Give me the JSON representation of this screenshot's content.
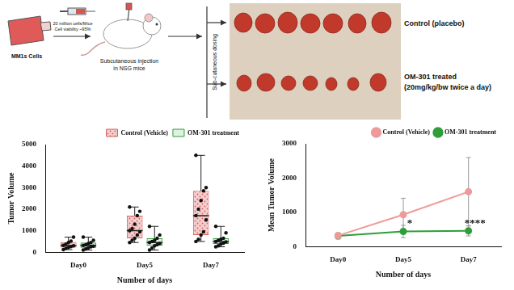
{
  "diagram": {
    "cells_label": "MM1s Cells",
    "dose_lines": [
      "20 million cells/Mice",
      "Cell viability ~95%"
    ],
    "injection_lines": [
      "Subcutaneous injection",
      "in NSG mice"
    ],
    "dosing_label": "Sub-cutaneous dosing",
    "groups": [
      {
        "lines": [
          "Control (placebo)"
        ]
      },
      {
        "lines": [
          "OM-301 treated",
          "(20mg/kg/bw twice a day)"
        ]
      }
    ]
  },
  "chart_data": [
    {
      "type": "box",
      "y_label": "Tumor Volume",
      "x_label": "Number of days",
      "categories": [
        "Day0",
        "Day5",
        "Day7"
      ],
      "ylim": [
        0,
        5000
      ],
      "yticks": [
        0,
        1000,
        2000,
        3000,
        4000,
        5000
      ],
      "grid": false,
      "legend": "top right",
      "series": [
        {
          "name": "Control (Vehicle)",
          "color": "#d9605f",
          "boxes": [
            {
              "min": 120,
              "q1": 210,
              "median": 310,
              "q3": 470,
              "max": 700
            },
            {
              "min": 450,
              "q1": 650,
              "median": 1000,
              "q3": 1700,
              "max": 2100
            },
            {
              "min": 500,
              "q1": 800,
              "median": 1700,
              "q3": 2850,
              "max": 4500
            }
          ],
          "points": [
            [
              120,
              180,
              220,
              260,
              300,
              320,
              380,
              450,
              520,
              700
            ],
            [
              450,
              550,
              650,
              800,
              950,
              1000,
              1100,
              1300,
              1700,
              1900,
              2100
            ],
            [
              500,
              600,
              800,
              950,
              1500,
              1700,
              2000,
              2400,
              2850,
              3000,
              4500
            ]
          ]
        },
        {
          "name": "OM-301 treatment",
          "color": "#2e9e3a",
          "boxes": [
            {
              "min": 100,
              "q1": 200,
              "median": 320,
              "q3": 450,
              "max": 700
            },
            {
              "min": 100,
              "q1": 300,
              "median": 450,
              "q3": 650,
              "max": 1200
            },
            {
              "min": 250,
              "q1": 380,
              "median": 500,
              "q3": 650,
              "max": 1200
            }
          ],
          "points": [
            [
              100,
              150,
              200,
              250,
              280,
              320,
              350,
              400,
              450,
              550,
              700
            ],
            [
              100,
              200,
              300,
              350,
              400,
              450,
              500,
              550,
              650,
              800,
              1200
            ],
            [
              250,
              300,
              380,
              420,
              480,
              500,
              550,
              600,
              650,
              900,
              1200
            ]
          ]
        }
      ]
    },
    {
      "type": "line",
      "y_label": "Mean Tumor Volume",
      "x_label": "Number of days",
      "categories": [
        "Day0",
        "Day5",
        "Day7"
      ],
      "ylim": [
        0,
        3000
      ],
      "yticks": [
        0,
        1000,
        2000,
        3000
      ],
      "grid": false,
      "legend": "top right",
      "series": [
        {
          "name": "Control (Vehicle)",
          "color": "#ef9a9a",
          "marker": "circle",
          "values": [
            320,
            930,
            1600
          ],
          "errors": [
            60,
            480,
            1000
          ]
        },
        {
          "name": "OM-301 treatment",
          "color": "#2e9e3a",
          "marker": "circle",
          "values": [
            310,
            440,
            460
          ],
          "errors": [
            90,
            180,
            150
          ]
        }
      ],
      "annotations": [
        {
          "text": "*",
          "category": "Day5"
        },
        {
          "text": "****",
          "category": "Day7"
        }
      ]
    }
  ]
}
